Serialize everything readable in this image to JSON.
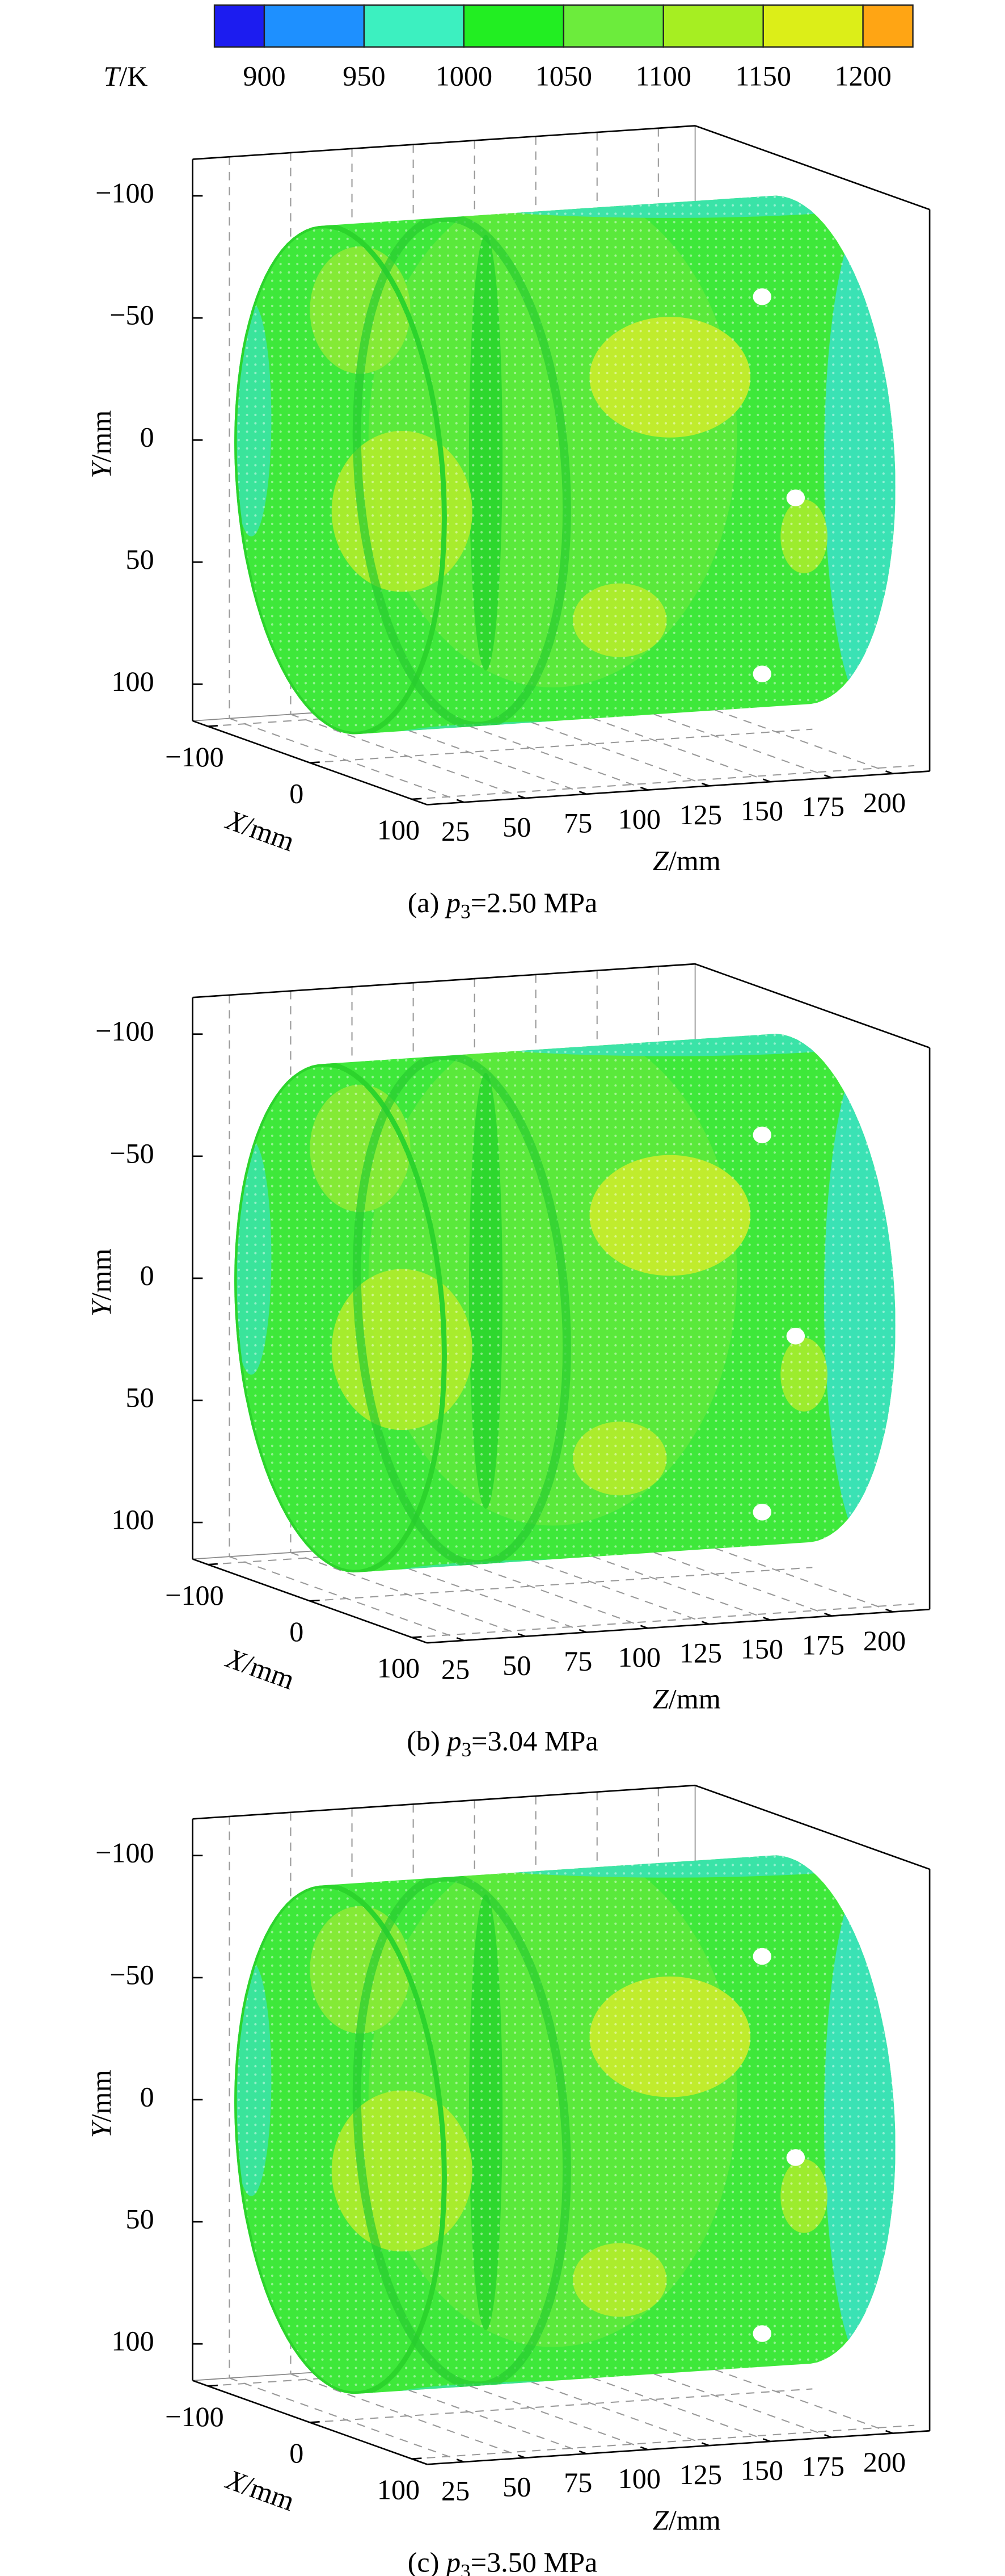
{
  "colorbar": {
    "title": {
      "var": "T",
      "unit": "/K"
    },
    "lim": [
      875,
      1225
    ],
    "ticks": [
      900,
      950,
      1000,
      1050,
      1100,
      1150,
      1200
    ],
    "colors": [
      "#1c1cf0",
      "#1e90ff",
      "#3cf0c0",
      "#22ee22",
      "#6cec3c",
      "#a6ee22",
      "#dcee18",
      "#ffa514"
    ]
  },
  "chart_data": [
    {
      "type": "surface3d",
      "caption": {
        "label": "(a) ",
        "var": "p",
        "sub": "3",
        "text": "=2.50 MPa"
      },
      "xlabel": {
        "var": "X",
        "unit": "/mm"
      },
      "ylabel": {
        "var": "Y",
        "unit": "/mm"
      },
      "zlabel": {
        "var": "Z",
        "unit": "/mm"
      },
      "xlim": [
        -115,
        115
      ],
      "xticks": [
        {
          "value": -100,
          "label": "−100"
        },
        0,
        100
      ],
      "ylim": [
        -115,
        115
      ],
      "yticks": [
        {
          "value": -100,
          "label": "−100"
        },
        {
          "value": -50,
          "label": "−50"
        },
        0,
        50,
        100
      ],
      "y_reversed": true,
      "zlim": [
        10,
        215
      ],
      "zticks": [
        25,
        50,
        75,
        100,
        125,
        150,
        175,
        200
      ],
      "grid": true
    },
    {
      "type": "surface3d",
      "caption": {
        "label": "(b) ",
        "var": "p",
        "sub": "3",
        "text": "=3.04 MPa"
      },
      "xlabel": {
        "var": "X",
        "unit": "/mm"
      },
      "ylabel": {
        "var": "Y",
        "unit": "/mm"
      },
      "zlabel": {
        "var": "Z",
        "unit": "/mm"
      },
      "xlim": [
        -115,
        115
      ],
      "xticks": [
        {
          "value": -100,
          "label": "−100"
        },
        0,
        100
      ],
      "ylim": [
        -115,
        115
      ],
      "yticks": [
        {
          "value": -100,
          "label": "−100"
        },
        {
          "value": -50,
          "label": "−50"
        },
        0,
        50,
        100
      ],
      "y_reversed": true,
      "zlim": [
        10,
        215
      ],
      "zticks": [
        25,
        50,
        75,
        100,
        125,
        150,
        175,
        200
      ],
      "grid": true
    },
    {
      "type": "surface3d",
      "caption": {
        "label": "(c) ",
        "var": "p",
        "sub": "3",
        "text": "=3.50 MPa"
      },
      "xlabel": {
        "var": "X",
        "unit": "/mm"
      },
      "ylabel": {
        "var": "Y",
        "unit": "/mm"
      },
      "zlabel": {
        "var": "Z",
        "unit": "/mm"
      },
      "xlim": [
        -115,
        115
      ],
      "xticks": [
        {
          "value": -100,
          "label": "−100"
        },
        0,
        100
      ],
      "ylim": [
        -115,
        115
      ],
      "yticks": [
        {
          "value": -100,
          "label": "−100"
        },
        {
          "value": -50,
          "label": "−50"
        },
        0,
        50,
        100
      ],
      "y_reversed": true,
      "zlim": [
        10,
        215
      ],
      "zticks": [
        25,
        50,
        75,
        100,
        125,
        150,
        175,
        200
      ],
      "grid": true
    }
  ]
}
